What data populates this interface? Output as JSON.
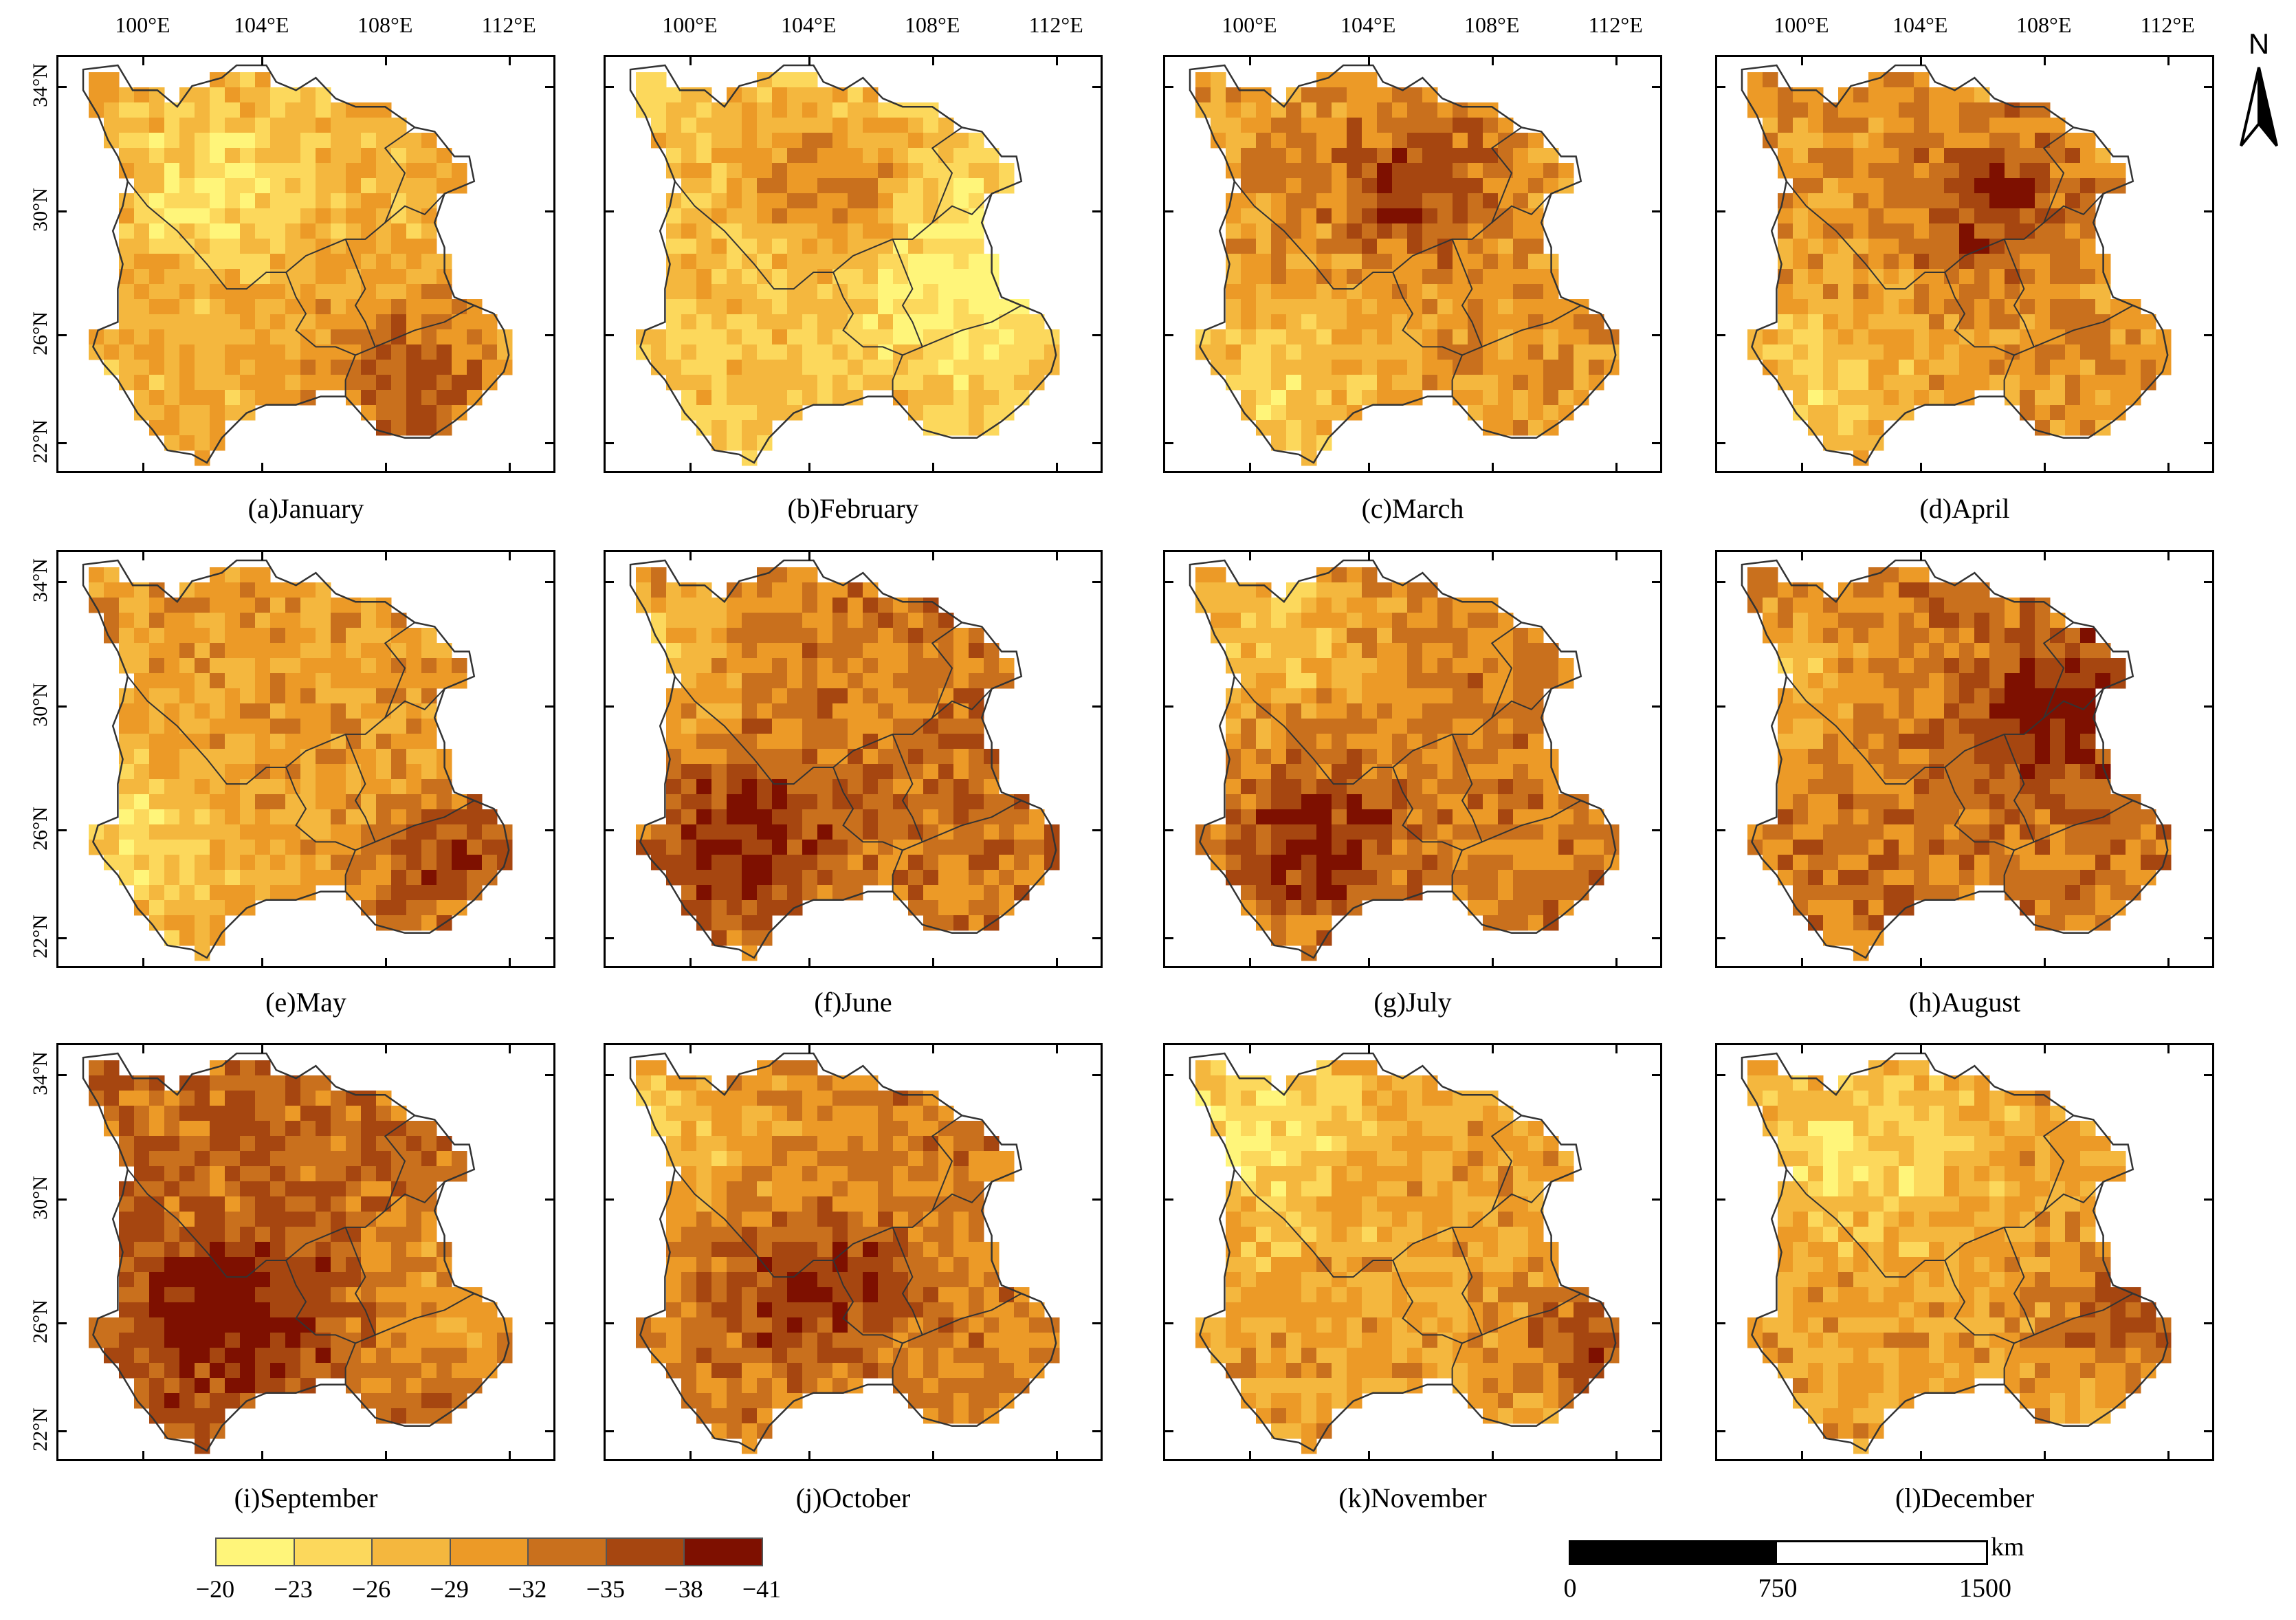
{
  "panels": [
    {
      "label": "(a)January",
      "mean": 0.42,
      "dark_center": [
        0.72,
        0.78
      ],
      "light_center": [
        0.32,
        0.3
      ]
    },
    {
      "label": "(b)February",
      "mean": 0.3,
      "dark_center": [
        0.45,
        0.3
      ],
      "light_center": [
        0.75,
        0.52
      ]
    },
    {
      "label": "(c)March",
      "mean": 0.5,
      "dark_center": [
        0.5,
        0.32
      ],
      "light_center": [
        0.2,
        0.8
      ]
    },
    {
      "label": "(d)April",
      "mean": 0.52,
      "dark_center": [
        0.55,
        0.36
      ],
      "light_center": [
        0.2,
        0.8
      ]
    },
    {
      "label": "(e)May",
      "mean": 0.48,
      "dark_center": [
        0.8,
        0.75
      ],
      "light_center": [
        0.15,
        0.7
      ]
    },
    {
      "label": "(f)June",
      "mean": 0.62,
      "dark_center": [
        0.28,
        0.7
      ],
      "light_center": [
        0.1,
        0.25
      ]
    },
    {
      "label": "(g)July",
      "mean": 0.58,
      "dark_center": [
        0.3,
        0.7
      ],
      "light_center": [
        0.2,
        0.2
      ]
    },
    {
      "label": "(h)August",
      "mean": 0.64,
      "dark_center": [
        0.7,
        0.4
      ],
      "light_center": [
        0.12,
        0.3
      ]
    },
    {
      "label": "(i)September",
      "mean": 0.68,
      "dark_center": [
        0.35,
        0.66
      ],
      "light_center": [
        0.85,
        0.6
      ]
    },
    {
      "label": "(j)October",
      "mean": 0.58,
      "dark_center": [
        0.42,
        0.6
      ],
      "light_center": [
        0.1,
        0.2
      ]
    },
    {
      "label": "(k)November",
      "mean": 0.45,
      "dark_center": [
        0.88,
        0.7
      ],
      "light_center": [
        0.2,
        0.2
      ]
    },
    {
      "label": "(l)December",
      "mean": 0.45,
      "dark_center": [
        0.85,
        0.66
      ],
      "light_center": [
        0.28,
        0.25
      ]
    }
  ],
  "axes": {
    "lon_labels": [
      "100°E",
      "104°E",
      "108°E",
      "112°E"
    ],
    "lat_labels": [
      "34°N",
      "30°N",
      "26°N",
      "22°N"
    ]
  },
  "north_label": "N",
  "legend": {
    "colors": [
      "#FFF57A",
      "#FCD85C",
      "#F4B73E",
      "#EC9A27",
      "#C9701D",
      "#A64610",
      "#7E1000"
    ],
    "labels": [
      "−20",
      "−23",
      "−26",
      "−29",
      "−32",
      "−35",
      "−38",
      "−41"
    ]
  },
  "scale_bar": {
    "unit": "km",
    "labels": [
      "0",
      "750",
      "1500"
    ]
  }
}
